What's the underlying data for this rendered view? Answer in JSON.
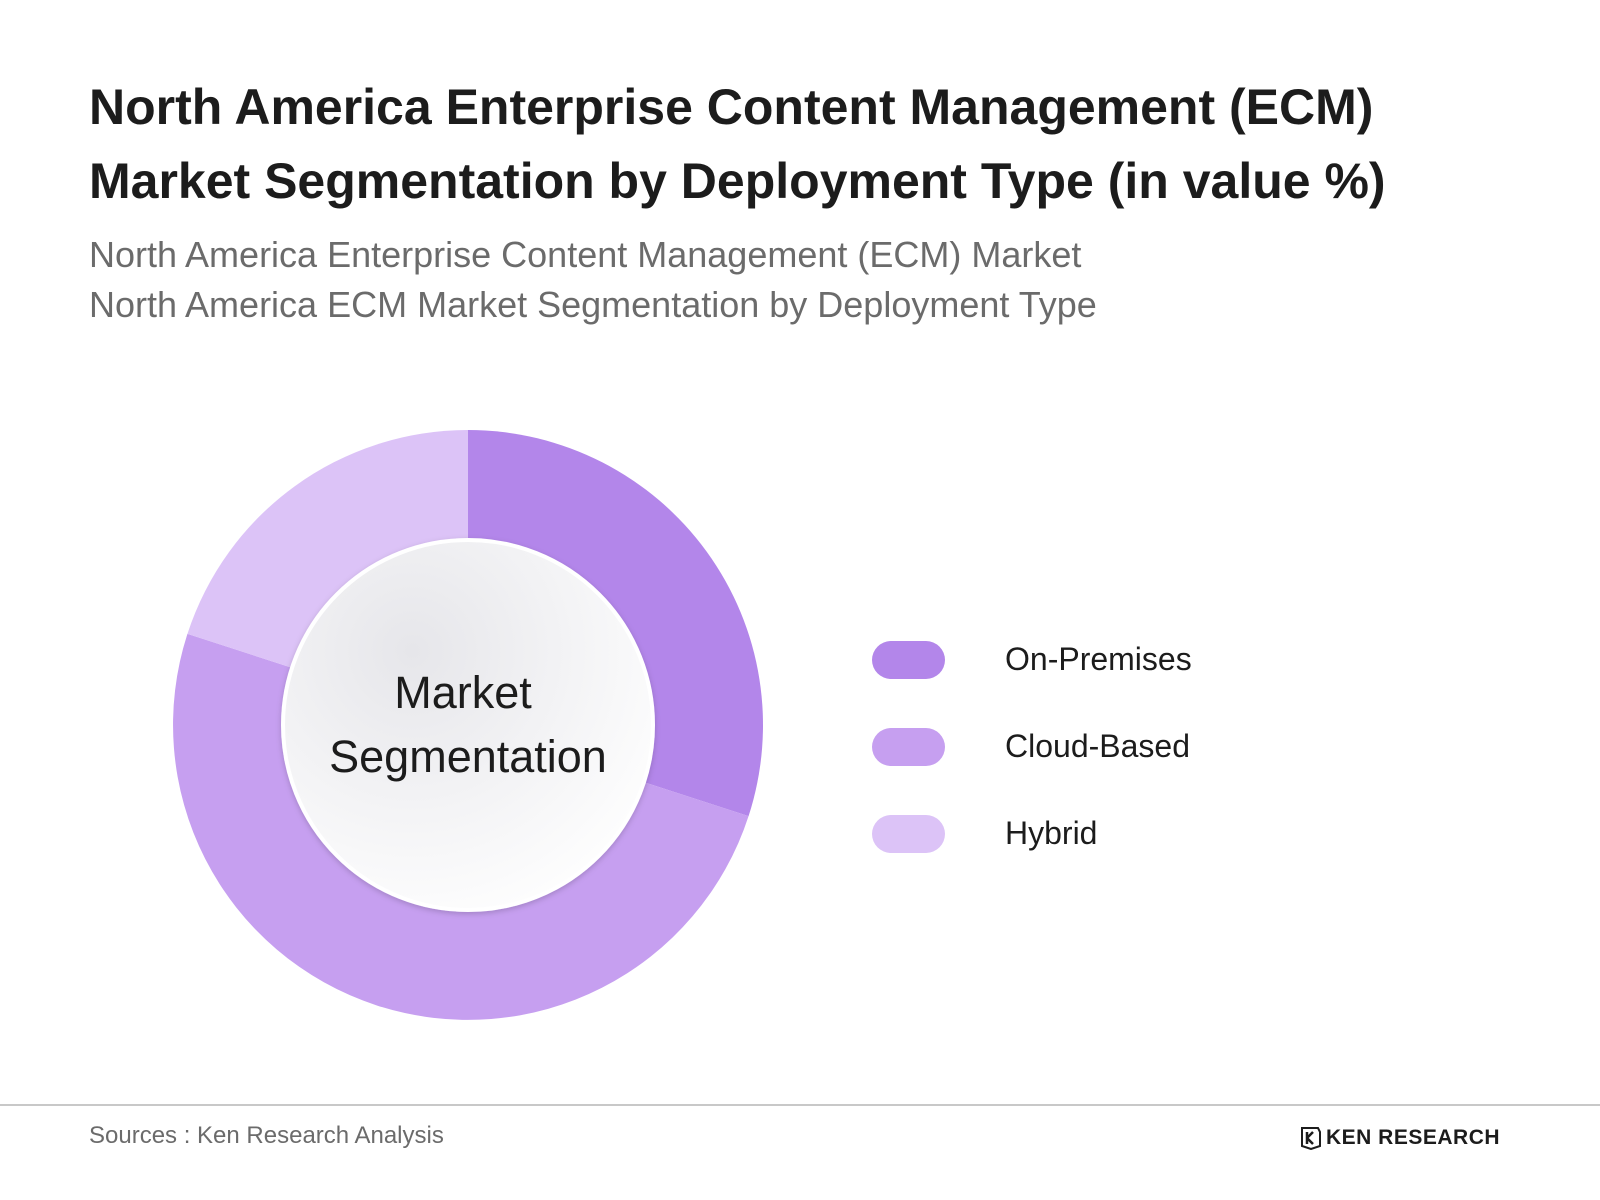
{
  "title_lines": [
    "North America Enterprise Content Management (ECM)",
    "Market Segmentation by Deployment Type (in value %)"
  ],
  "subtitle_lines": [
    "North America Enterprise Content Management (ECM) Market",
    "North America ECM Market Segmentation by Deployment Type"
  ],
  "chart_data": {
    "type": "pie",
    "variant": "donut",
    "center_label_lines": [
      "Market",
      "Segmentation"
    ],
    "categories": [
      "On-Premises",
      "Cloud-Based",
      "Hybrid"
    ],
    "values": [
      30,
      50,
      20
    ],
    "unit": "%",
    "colors": [
      "#b386ea",
      "#c69ff0",
      "#dcc3f7"
    ],
    "legend_position": "right"
  },
  "footer": {
    "source": "Sources : Ken Research Analysis",
    "logo_text": "KEN RESEARCH"
  }
}
